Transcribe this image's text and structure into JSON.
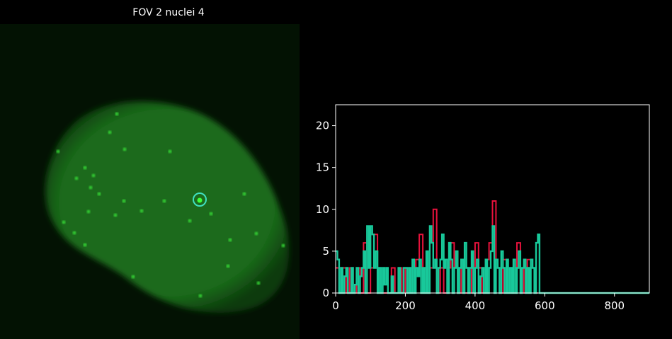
{
  "title": "FOV 2 nuclei 4",
  "colors": {
    "background": "#000000",
    "nucleus": "#1f7a1f",
    "spot": "#35e035",
    "marker_ring": "#40e0c0",
    "series_red": "#e8123c",
    "series_teal": "#18c89a",
    "axis": "#ffffff"
  },
  "microscopy": {
    "marker": "circle marking selected spot"
  },
  "chart_data": {
    "type": "line",
    "title": "",
    "xlabel": "",
    "ylabel": "",
    "xlim": [
      0,
      900
    ],
    "ylim": [
      0,
      22.5
    ],
    "xticks": [
      0,
      200,
      400,
      600,
      800
    ],
    "yticks": [
      0,
      5,
      10,
      15,
      20
    ],
    "grid": false,
    "series": [
      {
        "color": "#e8123c",
        "x": [
          0,
          10,
          20,
          30,
          40,
          50,
          60,
          70,
          80,
          90,
          100,
          110,
          120,
          130,
          140,
          150,
          160,
          170,
          180,
          190,
          200,
          210,
          220,
          230,
          240,
          250,
          260,
          270,
          280,
          290,
          300,
          310,
          320,
          330,
          340,
          350,
          360,
          370,
          380,
          390,
          400,
          410,
          420,
          430,
          440,
          450,
          460,
          470,
          480,
          490,
          500,
          510,
          520,
          530,
          540,
          550,
          560,
          570,
          580
        ],
        "y": [
          3,
          0,
          3,
          0,
          3,
          0,
          3,
          0,
          6,
          0,
          3,
          7,
          3,
          0,
          0,
          0,
          3,
          0,
          3,
          0,
          3,
          0,
          3,
          4,
          7,
          3,
          0,
          3,
          10,
          0,
          3,
          0,
          3,
          6,
          3,
          0,
          4,
          0,
          3,
          0,
          6,
          3,
          0,
          4,
          6,
          11,
          3,
          0,
          4,
          0,
          3,
          0,
          6,
          3,
          0,
          4,
          3,
          0,
          0
        ]
      },
      {
        "color": "#18c89a",
        "x": [
          0,
          5,
          10,
          15,
          20,
          25,
          30,
          35,
          40,
          45,
          50,
          55,
          60,
          65,
          70,
          75,
          80,
          85,
          90,
          95,
          100,
          105,
          110,
          115,
          120,
          125,
          130,
          135,
          140,
          145,
          150,
          155,
          160,
          165,
          170,
          175,
          180,
          185,
          190,
          195,
          200,
          205,
          210,
          215,
          220,
          225,
          230,
          235,
          240,
          245,
          250,
          255,
          260,
          265,
          270,
          275,
          280,
          285,
          290,
          295,
          300,
          305,
          310,
          315,
          320,
          325,
          330,
          335,
          340,
          345,
          350,
          355,
          360,
          365,
          370,
          375,
          380,
          385,
          390,
          395,
          400,
          405,
          410,
          415,
          420,
          425,
          430,
          435,
          440,
          445,
          450,
          455,
          460,
          465,
          470,
          475,
          480,
          485,
          490,
          495,
          500,
          505,
          510,
          515,
          520,
          525,
          530,
          535,
          540,
          545,
          550,
          555,
          560,
          565,
          570,
          575,
          580,
          585,
          590,
          600,
          700,
          800,
          900
        ],
        "y": [
          5,
          4,
          0,
          3,
          0,
          2,
          3,
          0,
          0,
          3,
          0,
          1,
          3,
          0,
          2,
          3,
          5,
          0,
          8,
          3,
          8,
          7,
          3,
          5,
          0,
          3,
          0,
          3,
          1,
          3,
          0,
          0,
          2,
          0,
          0,
          0,
          3,
          0,
          0,
          3,
          3,
          0,
          3,
          0,
          4,
          0,
          3,
          2,
          4,
          0,
          3,
          0,
          5,
          0,
          8,
          6,
          3,
          4,
          0,
          3,
          4,
          7,
          3,
          4,
          0,
          6,
          4,
          0,
          3,
          5,
          0,
          3,
          4,
          0,
          6,
          3,
          0,
          3,
          5,
          0,
          3,
          4,
          0,
          2,
          3,
          0,
          4,
          0,
          3,
          5,
          8,
          0,
          4,
          3,
          0,
          5,
          3,
          0,
          4,
          0,
          3,
          0,
          4,
          0,
          3,
          5,
          0,
          3,
          4,
          0,
          3,
          0,
          4,
          3,
          0,
          6,
          7,
          0,
          0,
          0,
          0,
          0,
          0
        ]
      }
    ]
  }
}
